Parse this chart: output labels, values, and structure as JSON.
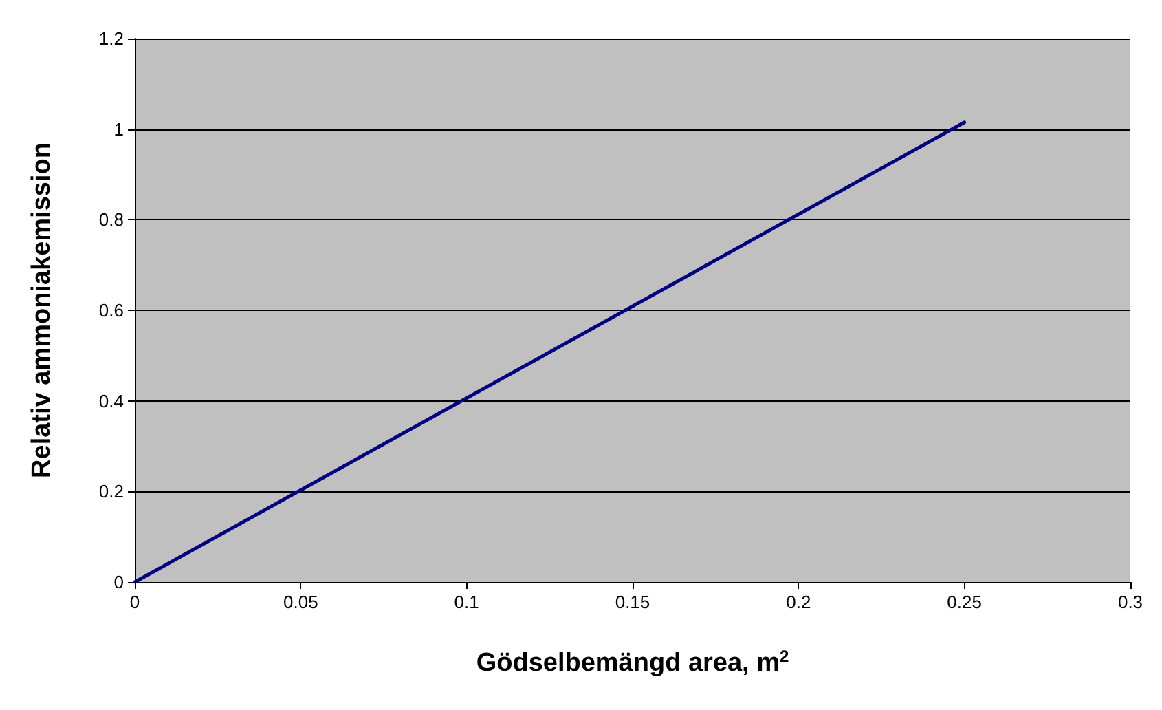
{
  "chart_data": {
    "type": "line",
    "xlabel": "Gödselbemängd area, m$^{2}$",
    "ylabel": "Relativ ammoniakemission",
    "x": [
      0,
      0.25
    ],
    "series": [
      {
        "color": "#000080",
        "values": [
          0,
          1.015
        ]
      }
    ],
    "xlim": [
      0,
      0.3
    ],
    "xticks": [
      0,
      0.05,
      0.1,
      0.15,
      0.2,
      0.25,
      0.3
    ],
    "ylim": [
      0,
      1.2
    ],
    "yticks": [
      0,
      0.2,
      0.4,
      0.6,
      0.8,
      1,
      1.2
    ],
    "grid": "y",
    "marker": "none",
    "line_style": "solid"
  }
}
